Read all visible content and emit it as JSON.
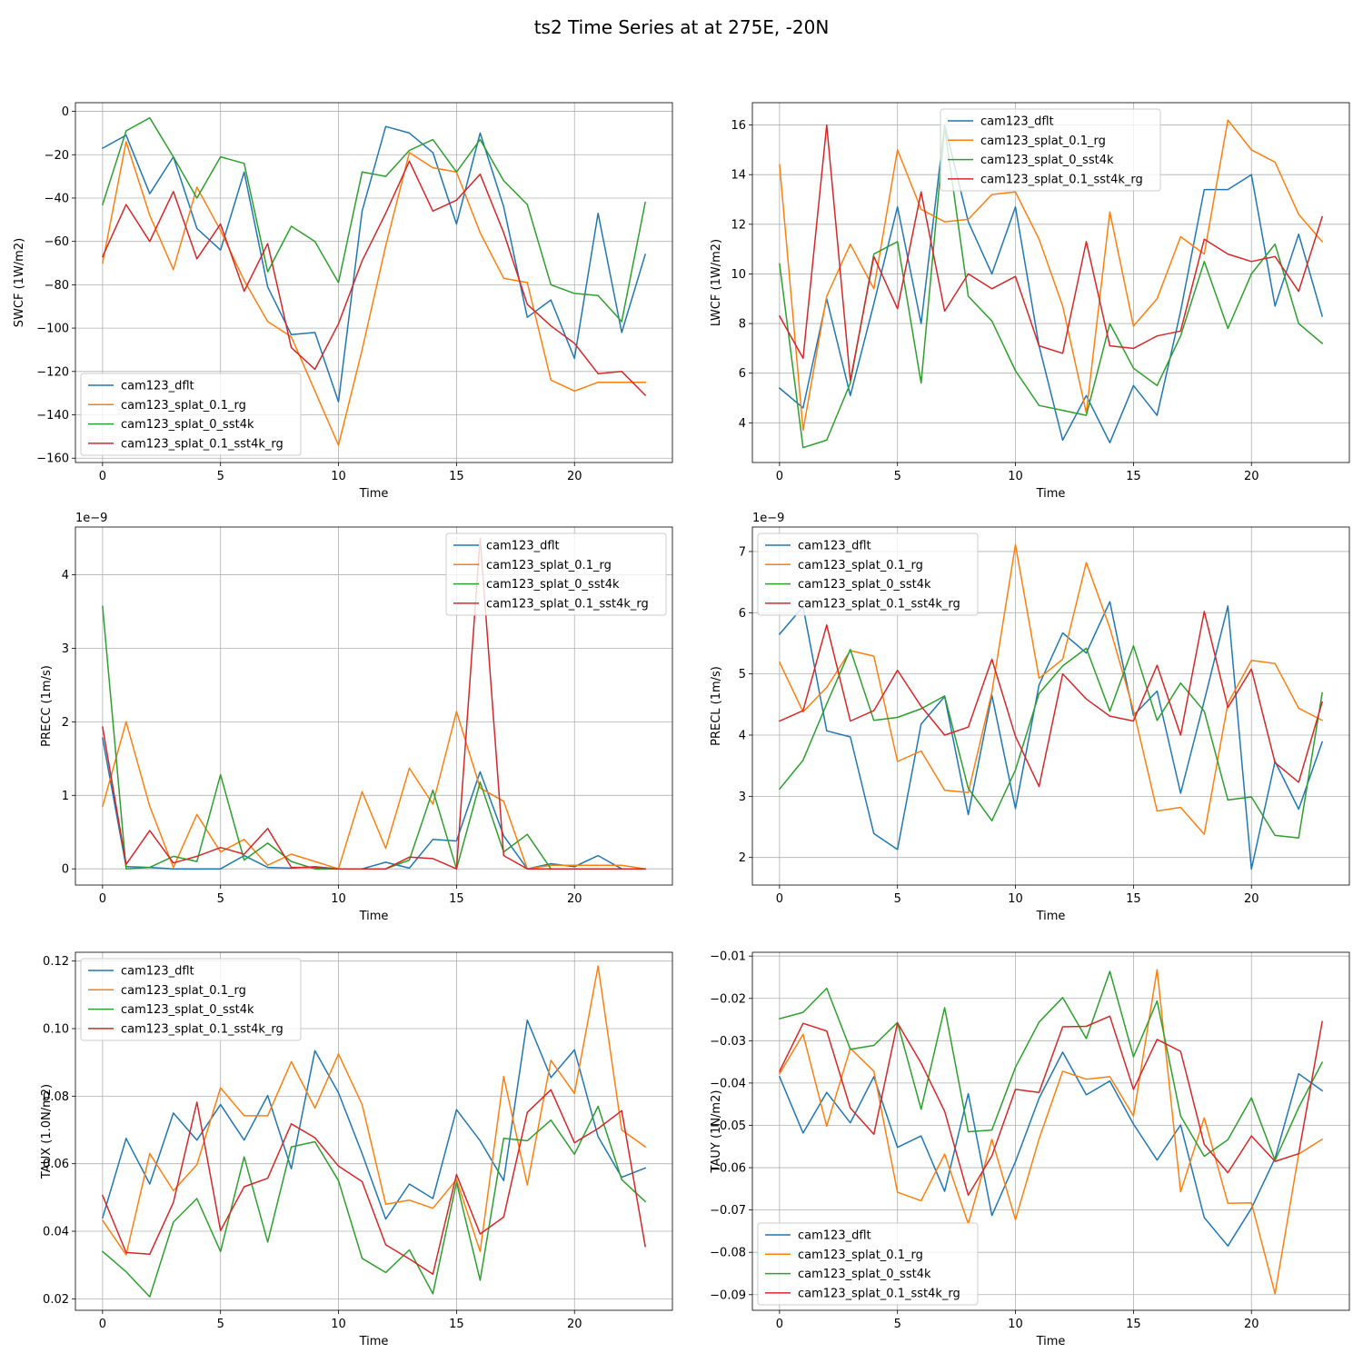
{
  "figure": {
    "title": "ts2 Time Series at at 275E, -20N"
  },
  "legend_labels": [
    "cam123_dflt",
    "cam123_splat_0.1_rg",
    "cam123_splat_0_sst4k",
    "cam123_splat_0.1_sst4k_rg"
  ],
  "colors": [
    "#1f77b4",
    "#ff7f0e",
    "#2ca02c",
    "#d62728"
  ],
  "chart_data": [
    {
      "type": "line",
      "xlabel": "Time",
      "ylabel": "SWCF (1W/m2)",
      "multiplier": "",
      "legend_loc": "lower-left",
      "xlim": [
        -1.15,
        24.15
      ],
      "ylim": [
        -162,
        4
      ],
      "xticks": [
        0,
        5,
        10,
        15,
        20
      ],
      "yticks": [
        0,
        -20,
        -40,
        -60,
        -80,
        -100,
        -120,
        -140,
        -160
      ],
      "ytick_labels": [
        "0",
        "−20",
        "−40",
        "−60",
        "−80",
        "−100",
        "−120",
        "−140",
        "−160"
      ],
      "x": [
        0,
        1,
        2,
        3,
        4,
        5,
        6,
        7,
        8,
        9,
        10,
        11,
        12,
        13,
        14,
        15,
        16,
        17,
        18,
        19,
        20,
        21,
        22,
        23
      ],
      "series": [
        {
          "name": "cam123_dflt",
          "values": [
            -17,
            -11,
            -38,
            -21,
            -54,
            -64,
            -28,
            -81,
            -103,
            -102,
            -134,
            -46,
            -7,
            -10,
            -19,
            -52,
            -10,
            -44,
            -95,
            -87,
            -114,
            -47,
            -102,
            -66
          ]
        },
        {
          "name": "cam123_splat_0.1_rg",
          "values": [
            -70,
            -14,
            -48,
            -73,
            -35,
            -55,
            -78,
            -97,
            -104,
            -129,
            -154,
            -110,
            -62,
            -19,
            -26,
            -28,
            -56,
            -77,
            -79,
            -124,
            -129,
            -125,
            -125,
            -125
          ]
        },
        {
          "name": "cam123_splat_0_sst4k",
          "values": [
            -43,
            -9,
            -3,
            -21,
            -40,
            -21,
            -24,
            -74,
            -53,
            -60,
            -79,
            -28,
            -30,
            -18,
            -13,
            -28,
            -13,
            -32,
            -43,
            -80,
            -84,
            -85,
            -97,
            -42
          ]
        },
        {
          "name": "cam123_splat_0.1_sst4k_rg",
          "values": [
            -67,
            -43,
            -60,
            -37,
            -68,
            -52,
            -83,
            -61,
            -109,
            -119,
            -98,
            -69,
            -47,
            -23,
            -46,
            -41,
            -29,
            -56,
            -89,
            -99,
            -107,
            -121,
            -120,
            -131
          ]
        }
      ]
    },
    {
      "type": "line",
      "xlabel": "Time",
      "ylabel": "LWCF (1W/m2)",
      "multiplier": "",
      "legend_loc": "top-center",
      "xlim": [
        -1.15,
        24.15
      ],
      "ylim": [
        2.4,
        16.9
      ],
      "xticks": [
        0,
        5,
        10,
        15,
        20
      ],
      "yticks": [
        4,
        6,
        8,
        10,
        12,
        14,
        16
      ],
      "ytick_labels": [
        "4",
        "6",
        "8",
        "10",
        "12",
        "14",
        "16"
      ],
      "x": [
        0,
        1,
        2,
        3,
        4,
        5,
        6,
        7,
        8,
        9,
        10,
        11,
        12,
        13,
        14,
        15,
        16,
        17,
        18,
        19,
        20,
        21,
        22,
        23
      ],
      "series": [
        {
          "name": "cam123_dflt",
          "values": [
            5.4,
            4.6,
            9.0,
            5.1,
            8.8,
            12.7,
            8.0,
            16.0,
            12.1,
            10.0,
            12.7,
            7.1,
            3.3,
            5.1,
            3.2,
            5.5,
            4.3,
            8.5,
            13.4,
            13.4,
            14.0,
            8.7,
            11.6,
            8.3
          ]
        },
        {
          "name": "cam123_splat_0.1_rg",
          "values": [
            14.4,
            3.7,
            9.1,
            11.2,
            9.4,
            15.0,
            12.6,
            12.1,
            12.2,
            13.2,
            13.3,
            11.4,
            8.7,
            4.4,
            12.5,
            7.9,
            9.0,
            11.5,
            10.8,
            16.2,
            15.0,
            14.5,
            12.4,
            11.3
          ]
        },
        {
          "name": "cam123_splat_0_sst4k",
          "values": [
            10.4,
            3.0,
            3.3,
            5.6,
            10.8,
            11.3,
            5.6,
            15.9,
            9.1,
            8.1,
            6.1,
            4.7,
            4.5,
            4.3,
            8.0,
            6.2,
            5.5,
            7.5,
            10.5,
            7.8,
            10.0,
            11.2,
            8.0,
            7.2
          ]
        },
        {
          "name": "cam123_splat_0.1_sst4k_rg",
          "values": [
            8.3,
            6.6,
            16.0,
            5.7,
            10.7,
            8.6,
            13.3,
            8.5,
            10.0,
            9.4,
            9.9,
            7.1,
            6.8,
            11.3,
            7.1,
            7.0,
            7.5,
            7.7,
            11.4,
            10.8,
            10.5,
            10.7,
            9.3,
            12.3
          ]
        }
      ]
    },
    {
      "type": "line",
      "xlabel": "Time",
      "ylabel": "PRECC (1m/s)",
      "multiplier": "1e−9",
      "legend_loc": "top-right",
      "xlim": [
        -1.15,
        24.15
      ],
      "ylim": [
        -0.22,
        4.65
      ],
      "xticks": [
        0,
        5,
        10,
        15,
        20
      ],
      "yticks": [
        0,
        1,
        2,
        3,
        4
      ],
      "ytick_labels": [
        "0",
        "1",
        "2",
        "3",
        "4"
      ],
      "x": [
        0,
        1,
        2,
        3,
        4,
        5,
        6,
        7,
        8,
        9,
        10,
        11,
        12,
        13,
        14,
        15,
        16,
        17,
        18,
        19,
        20,
        21,
        22,
        23
      ],
      "series": [
        {
          "name": "cam123_dflt",
          "values": [
            1.78,
            0.03,
            0.02,
            0.0,
            0.0,
            0.0,
            0.18,
            0.02,
            0.01,
            0.03,
            0.0,
            0.0,
            0.09,
            0.01,
            0.4,
            0.38,
            1.32,
            0.45,
            0.0,
            0.07,
            0.03,
            0.18,
            0.0,
            0.0
          ]
        },
        {
          "name": "cam123_splat_0.1_rg",
          "values": [
            0.85,
            2.0,
            0.85,
            0.02,
            0.74,
            0.23,
            0.4,
            0.05,
            0.2,
            0.1,
            0.0,
            1.05,
            0.28,
            1.37,
            0.88,
            2.14,
            1.1,
            0.92,
            0.0,
            0.05,
            0.05,
            0.05,
            0.05,
            0.0
          ]
        },
        {
          "name": "cam123_splat_0_sst4k",
          "values": [
            3.57,
            0.0,
            0.02,
            0.17,
            0.1,
            1.28,
            0.12,
            0.35,
            0.1,
            0.0,
            0.0,
            0.0,
            0.0,
            0.12,
            1.07,
            0.0,
            1.18,
            0.23,
            0.47,
            0.0,
            0.0,
            0.0,
            0.0,
            0.0
          ]
        },
        {
          "name": "cam123_splat_0.1_sst4k_rg",
          "values": [
            1.93,
            0.06,
            0.52,
            0.08,
            0.17,
            0.29,
            0.2,
            0.55,
            0.02,
            0.02,
            0.0,
            0.0,
            0.0,
            0.16,
            0.14,
            0.0,
            4.5,
            0.18,
            0.0,
            0.0,
            0.0,
            0.0,
            0.0,
            0.0
          ]
        }
      ]
    },
    {
      "type": "line",
      "xlabel": "Time",
      "ylabel": "PRECL (1m/s)",
      "multiplier": "1e−9",
      "legend_loc": "top-left",
      "xlim": [
        -1.15,
        24.15
      ],
      "ylim": [
        1.55,
        7.4
      ],
      "xticks": [
        0,
        5,
        10,
        15,
        20
      ],
      "yticks": [
        2,
        3,
        4,
        5,
        6,
        7
      ],
      "ytick_labels": [
        "2",
        "3",
        "4",
        "5",
        "6",
        "7"
      ],
      "x": [
        0,
        1,
        2,
        3,
        4,
        5,
        6,
        7,
        8,
        9,
        10,
        11,
        12,
        13,
        14,
        15,
        16,
        17,
        18,
        19,
        20,
        21,
        22,
        23
      ],
      "series": [
        {
          "name": "cam123_dflt",
          "values": [
            5.65,
            6.1,
            4.07,
            3.97,
            2.39,
            2.13,
            4.18,
            4.63,
            2.7,
            4.65,
            2.8,
            4.82,
            5.67,
            5.34,
            6.18,
            4.32,
            4.72,
            3.05,
            4.56,
            6.11,
            1.81,
            3.57,
            2.79,
            3.89
          ]
        },
        {
          "name": "cam123_splat_0.1_rg",
          "values": [
            5.19,
            4.38,
            4.78,
            5.38,
            5.29,
            3.57,
            3.74,
            3.1,
            3.06,
            4.7,
            7.11,
            4.93,
            5.24,
            6.82,
            5.75,
            4.41,
            2.76,
            2.82,
            2.38,
            4.52,
            5.22,
            5.17,
            4.44,
            4.24
          ]
        },
        {
          "name": "cam123_splat_0_sst4k",
          "values": [
            3.12,
            3.59,
            4.51,
            5.4,
            4.24,
            4.29,
            4.43,
            4.64,
            3.13,
            2.6,
            3.43,
            4.68,
            5.13,
            5.42,
            4.39,
            5.46,
            4.24,
            4.85,
            4.39,
            2.94,
            2.99,
            2.36,
            2.32,
            4.69
          ]
        },
        {
          "name": "cam123_splat_0.1_sst4k_rg",
          "values": [
            4.23,
            4.4,
            5.8,
            4.23,
            4.4,
            5.06,
            4.47,
            4.0,
            4.13,
            5.24,
            3.98,
            3.16,
            5.0,
            4.59,
            4.31,
            4.23,
            5.14,
            4.0,
            6.02,
            4.45,
            5.08,
            3.55,
            3.23,
            4.54
          ]
        }
      ]
    },
    {
      "type": "line",
      "xlabel": "Time",
      "ylabel": "TAUX (1.0N/m2)",
      "multiplier": "",
      "legend_loc": "top-left",
      "xlim": [
        -1.15,
        24.15
      ],
      "ylim": [
        0.0166,
        0.1226
      ],
      "xticks": [
        0,
        5,
        10,
        15,
        20
      ],
      "yticks": [
        0.02,
        0.04,
        0.06,
        0.08,
        0.1,
        0.12
      ],
      "ytick_labels": [
        "0.02",
        "0.04",
        "0.06",
        "0.08",
        "0.10",
        "0.12"
      ],
      "x": [
        0,
        1,
        2,
        3,
        4,
        5,
        6,
        7,
        8,
        9,
        10,
        11,
        12,
        13,
        14,
        15,
        16,
        17,
        18,
        19,
        20,
        21,
        22,
        23
      ],
      "series": [
        {
          "name": "cam123_dflt",
          "values": [
            0.044,
            0.0675,
            0.054,
            0.075,
            0.067,
            0.0775,
            0.067,
            0.0802,
            0.0585,
            0.0935,
            0.081,
            0.063,
            0.0436,
            0.054,
            0.0497,
            0.076,
            0.0668,
            0.055,
            0.1025,
            0.0855,
            0.0937,
            0.068,
            0.056,
            0.0587
          ]
        },
        {
          "name": "cam123_splat_0.1_rg",
          "values": [
            0.0432,
            0.033,
            0.063,
            0.052,
            0.0597,
            0.0825,
            0.0742,
            0.0742,
            0.0902,
            0.0765,
            0.0925,
            0.0775,
            0.048,
            0.0492,
            0.0468,
            0.0553,
            0.034,
            0.0858,
            0.0537,
            0.0906,
            0.0808,
            0.1185,
            0.07,
            0.065
          ]
        },
        {
          "name": "cam123_splat_0_sst4k",
          "values": [
            0.034,
            0.028,
            0.0206,
            0.0427,
            0.0497,
            0.034,
            0.062,
            0.0368,
            0.065,
            0.0665,
            0.055,
            0.032,
            0.0278,
            0.0345,
            0.0215,
            0.0545,
            0.0255,
            0.0675,
            0.0668,
            0.0729,
            0.0628,
            0.077,
            0.0553,
            0.0488
          ]
        },
        {
          "name": "cam123_splat_0.1_sst4k_rg",
          "values": [
            0.0506,
            0.0337,
            0.0332,
            0.0485,
            0.0782,
            0.0402,
            0.0532,
            0.0557,
            0.0718,
            0.0677,
            0.0593,
            0.0547,
            0.036,
            0.0318,
            0.0273,
            0.0568,
            0.0392,
            0.0442,
            0.0752,
            0.0819,
            0.0662,
            0.0704,
            0.0757,
            0.0355
          ]
        }
      ]
    },
    {
      "type": "line",
      "xlabel": "Time",
      "ylabel": "TAUY (1N/m2)",
      "multiplier": "",
      "legend_loc": "bottom-left",
      "xlim": [
        -1.15,
        24.15
      ],
      "ylim": [
        -0.0937,
        -0.0091
      ],
      "xticks": [
        0,
        5,
        10,
        15,
        20
      ],
      "yticks": [
        -0.01,
        -0.02,
        -0.03,
        -0.04,
        -0.05,
        -0.06,
        -0.07,
        -0.08,
        -0.09
      ],
      "ytick_labels": [
        "−0.01",
        "−0.02",
        "−0.03",
        "−0.04",
        "−0.05",
        "−0.06",
        "−0.07",
        "−0.08",
        "−0.09"
      ],
      "x": [
        0,
        1,
        2,
        3,
        4,
        5,
        6,
        7,
        8,
        9,
        10,
        11,
        12,
        13,
        14,
        15,
        16,
        17,
        18,
        19,
        20,
        21,
        22,
        23
      ],
      "series": [
        {
          "name": "cam123_dflt",
          "values": [
            -0.0385,
            -0.0518,
            -0.0422,
            -0.0494,
            -0.0385,
            -0.0552,
            -0.0525,
            -0.0656,
            -0.0425,
            -0.0713,
            -0.0586,
            -0.0436,
            -0.0327,
            -0.0428,
            -0.0395,
            -0.0497,
            -0.0582,
            -0.0499,
            -0.0718,
            -0.0785,
            -0.0696,
            -0.0578,
            -0.0378,
            -0.0418
          ]
        },
        {
          "name": "cam123_splat_0.1_rg",
          "values": [
            -0.0378,
            -0.0285,
            -0.0502,
            -0.0318,
            -0.0372,
            -0.0658,
            -0.0678,
            -0.0568,
            -0.0733,
            -0.0533,
            -0.0723,
            -0.0532,
            -0.0372,
            -0.0391,
            -0.0385,
            -0.0478,
            -0.0132,
            -0.0657,
            -0.0482,
            -0.0684,
            -0.0683,
            -0.0898,
            -0.0568,
            -0.0533
          ]
        },
        {
          "name": "cam123_splat_0_sst4k",
          "values": [
            -0.0248,
            -0.0233,
            -0.0176,
            -0.032,
            -0.0311,
            -0.0257,
            -0.0462,
            -0.0222,
            -0.0515,
            -0.0511,
            -0.0363,
            -0.0256,
            -0.0198,
            -0.0295,
            -0.0136,
            -0.0338,
            -0.0206,
            -0.0478,
            -0.0573,
            -0.0534,
            -0.0435,
            -0.0583,
            -0.0458,
            -0.0351
          ]
        },
        {
          "name": "cam123_splat_0.1_sst4k_rg",
          "values": [
            -0.0372,
            -0.0259,
            -0.0277,
            -0.0459,
            -0.0521,
            -0.0258,
            -0.0353,
            -0.0467,
            -0.0665,
            -0.0572,
            -0.0415,
            -0.0422,
            -0.0267,
            -0.0266,
            -0.0242,
            -0.0415,
            -0.0297,
            -0.0325,
            -0.0545,
            -0.0612,
            -0.0525,
            -0.0585,
            -0.0567,
            -0.0255
          ]
        }
      ]
    }
  ]
}
